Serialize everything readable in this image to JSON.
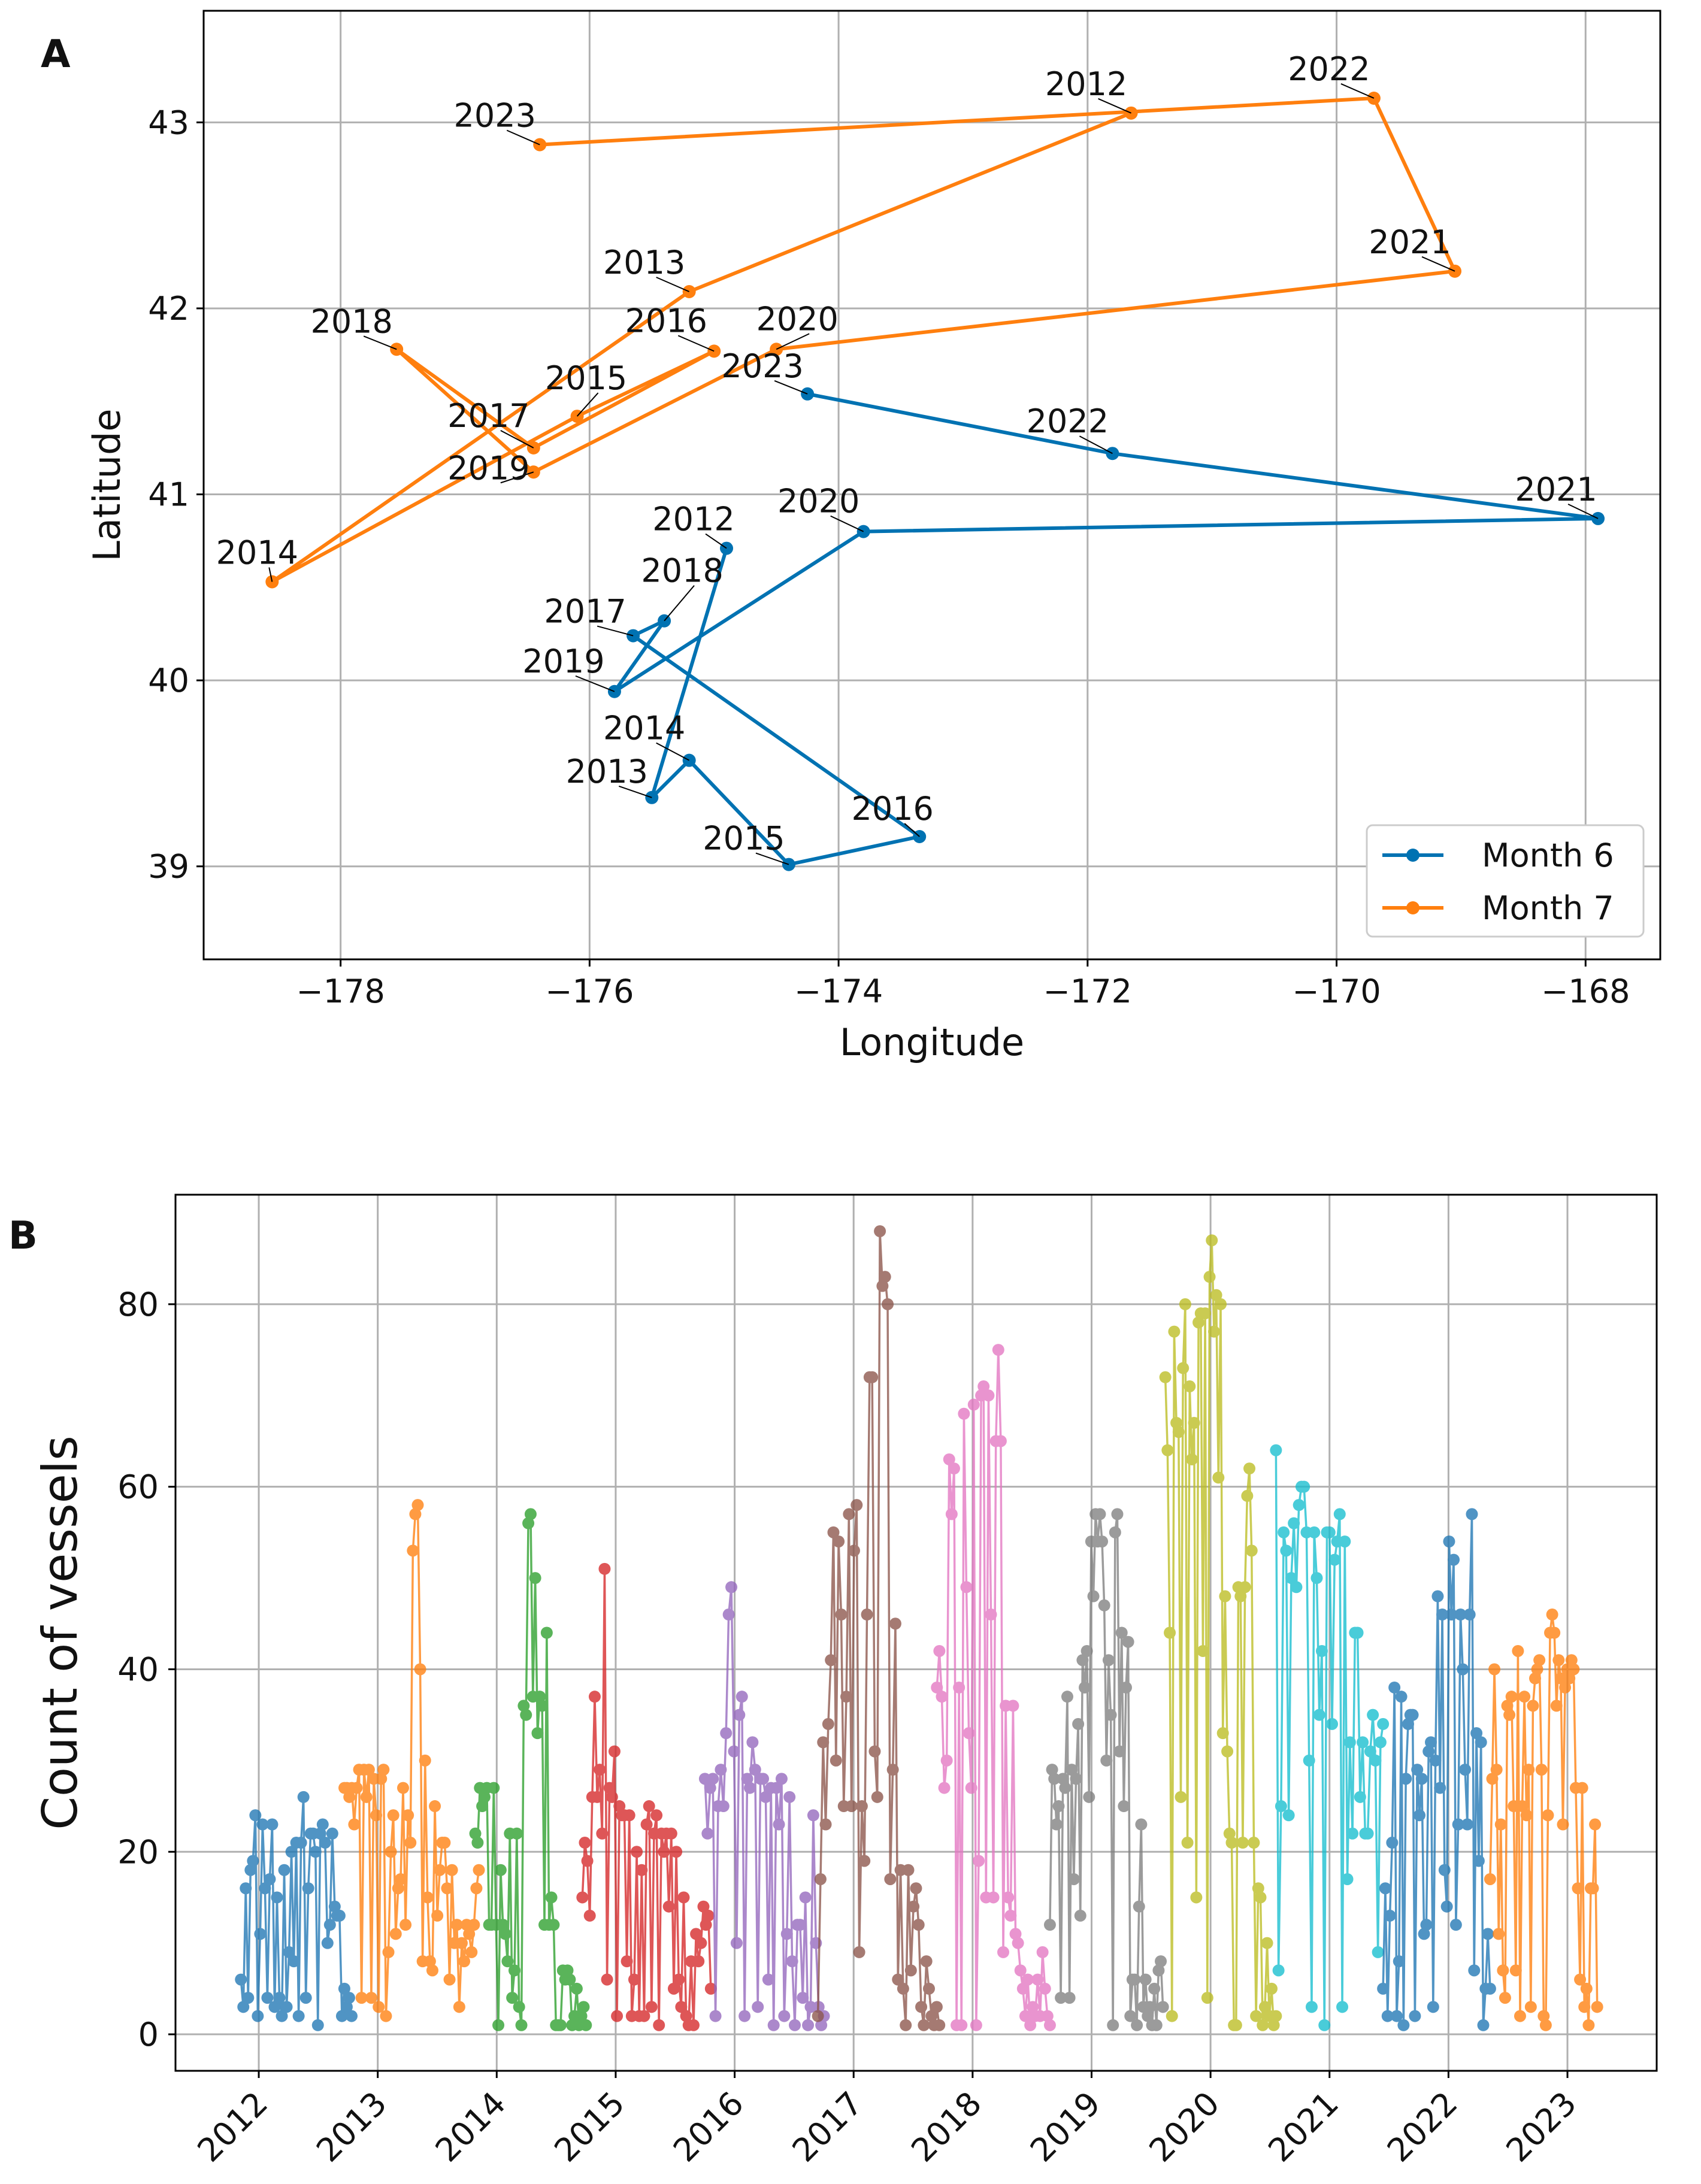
{
  "figure": {
    "panel_a_letter": "A",
    "panel_b_letter": "B"
  },
  "chart_data": [
    {
      "type": "line",
      "panel": "A",
      "title": "",
      "xlabel": "Longitude",
      "ylabel": "Latitude",
      "xlim": [
        -179.1,
        -167.4
      ],
      "ylim": [
        38.5,
        43.6
      ],
      "xticks": [
        -178,
        -176,
        -174,
        -172,
        -170,
        -168
      ],
      "xtick_labels": [
        "−178",
        "−176",
        "−174",
        "−172",
        "−170",
        "−168"
      ],
      "yticks": [
        39,
        40,
        41,
        42,
        43
      ],
      "ytick_labels": [
        "39",
        "40",
        "41",
        "42",
        "43"
      ],
      "grid": true,
      "legend_position": "bottom-right",
      "series": [
        {
          "name": "Month 6",
          "color": "#0072b2",
          "points": [
            {
              "label": "2012",
              "x": -174.9,
              "y": 40.71
            },
            {
              "label": "2013",
              "x": -175.5,
              "y": 39.37
            },
            {
              "label": "2014",
              "x": -175.2,
              "y": 39.57
            },
            {
              "label": "2015",
              "x": -174.4,
              "y": 39.01
            },
            {
              "label": "2016",
              "x": -173.35,
              "y": 39.16
            },
            {
              "label": "2017",
              "x": -175.65,
              "y": 40.24
            },
            {
              "label": "2018",
              "x": -175.4,
              "y": 40.32
            },
            {
              "label": "2019",
              "x": -175.8,
              "y": 39.94
            },
            {
              "label": "2020",
              "x": -173.8,
              "y": 40.8
            },
            {
              "label": "2021",
              "x": -167.9,
              "y": 40.87
            },
            {
              "label": "2022",
              "x": -171.8,
              "y": 41.22
            },
            {
              "label": "2023",
              "x": -174.25,
              "y": 41.54
            }
          ]
        },
        {
          "name": "Month 7",
          "color": "#ff7f0e",
          "points": [
            {
              "label": "2012",
              "x": -171.65,
              "y": 43.05
            },
            {
              "label": "2013",
              "x": -175.2,
              "y": 42.09
            },
            {
              "label": "2014",
              "x": -178.55,
              "y": 40.53
            },
            {
              "label": "2015",
              "x": -176.1,
              "y": 41.42
            },
            {
              "label": "2016",
              "x": -175.0,
              "y": 41.77
            },
            {
              "label": "2017",
              "x": -176.45,
              "y": 41.25
            },
            {
              "label": "2018",
              "x": -177.55,
              "y": 41.78
            },
            {
              "label": "2019",
              "x": -176.45,
              "y": 41.12
            },
            {
              "label": "2020",
              "x": -174.5,
              "y": 41.78
            },
            {
              "label": "2021",
              "x": -169.05,
              "y": 42.2
            },
            {
              "label": "2022",
              "x": -169.7,
              "y": 43.13
            },
            {
              "label": "2023",
              "x": -176.4,
              "y": 42.88
            }
          ]
        }
      ]
    },
    {
      "type": "line",
      "panel": "B",
      "title": "",
      "xlabel": "",
      "ylabel": "Count of vessels",
      "xlim": [
        2011.3,
        2023.75
      ],
      "ylim": [
        -4,
        92
      ],
      "xticks": [
        2012,
        2013,
        2014,
        2015,
        2016,
        2017,
        2018,
        2019,
        2020,
        2021,
        2022,
        2023
      ],
      "xtick_labels": [
        "2012",
        "2013",
        "2014",
        "2015",
        "2016",
        "2017",
        "2018",
        "2019",
        "2020",
        "2021",
        "2022",
        "2023"
      ],
      "yticks": [
        0,
        20,
        40,
        60,
        80
      ],
      "ytick_labels": [
        "0",
        "20",
        "40",
        "60",
        "80"
      ],
      "grid": true,
      "series": [
        {
          "name": "2012",
          "color": "#1f77b4",
          "x_start": 2011.85,
          "x_end": 2012.78,
          "values": [
            6,
            3,
            16,
            4,
            18,
            19,
            24,
            2,
            11,
            23,
            16,
            4,
            17,
            23,
            3,
            15,
            4,
            2,
            18,
            3,
            9,
            20,
            8,
            21,
            2,
            21,
            26,
            4,
            16,
            22,
            22,
            20,
            1,
            22,
            23,
            21,
            10,
            12,
            22,
            14,
            13,
            13,
            2,
            5,
            3,
            4,
            2
          ]
        },
        {
          "name": "2013",
          "color": "#ff7f0e",
          "x_start": 2012.72,
          "x_end": 2013.85,
          "values": [
            27,
            27,
            26,
            27,
            23,
            27,
            29,
            4,
            29,
            26,
            29,
            4,
            28,
            24,
            3,
            28,
            29,
            2,
            9,
            20,
            24,
            11,
            16,
            17,
            27,
            12,
            24,
            21,
            53,
            57,
            58,
            40,
            8,
            30,
            15,
            8,
            7,
            25,
            13,
            18,
            21,
            21,
            16,
            6,
            18,
            10,
            12,
            3,
            10,
            8,
            12,
            11,
            9,
            12,
            16,
            18
          ]
        },
        {
          "name": "2014",
          "color": "#2ca02c",
          "x_start": 2013.82,
          "x_end": 2014.75,
          "values": [
            22,
            21,
            27,
            25,
            26,
            27,
            12,
            12,
            27,
            12,
            1,
            18,
            12,
            11,
            8,
            22,
            4,
            7,
            22,
            3,
            1,
            36,
            35,
            56,
            57,
            37,
            50,
            33,
            37,
            36,
            12,
            44,
            12,
            15,
            12,
            1,
            1,
            1,
            7,
            6,
            7,
            6,
            1,
            2,
            5,
            1,
            2,
            3,
            1
          ]
        },
        {
          "name": "2015",
          "color": "#d62728",
          "x_start": 2014.72,
          "x_end": 2015.8,
          "values": [
            15,
            21,
            19,
            13,
            26,
            37,
            26,
            29,
            22,
            51,
            6,
            27,
            26,
            31,
            2,
            25,
            24,
            24,
            8,
            24,
            2,
            6,
            20,
            2,
            18,
            2,
            23,
            25,
            3,
            22,
            24,
            1,
            22,
            20,
            22,
            14,
            22,
            5,
            20,
            6,
            3,
            15,
            2,
            1,
            8,
            1,
            11,
            8,
            10,
            14,
            12,
            13,
            5
          ]
        },
        {
          "name": "2016",
          "color": "#9467bd",
          "x_start": 2015.75,
          "x_end": 2016.75,
          "values": [
            28,
            22,
            27,
            28,
            2,
            25,
            29,
            25,
            33,
            46,
            49,
            31,
            10,
            35,
            37,
            2,
            28,
            27,
            32,
            29,
            3,
            28,
            28,
            26,
            6,
            27,
            1,
            27,
            23,
            28,
            2,
            11,
            26,
            8,
            1,
            12,
            12,
            4,
            15,
            1,
            3,
            24,
            10,
            3,
            1,
            2
          ]
        },
        {
          "name": "2017",
          "color": "#8c564b",
          "x_start": 2016.7,
          "x_end": 2017.72,
          "values": [
            2,
            17,
            32,
            23,
            34,
            41,
            55,
            30,
            54,
            46,
            25,
            37,
            57,
            25,
            53,
            58,
            9,
            25,
            19,
            46,
            72,
            72,
            31,
            26,
            88,
            82,
            83,
            80,
            17,
            29,
            45,
            6,
            18,
            5,
            1,
            18,
            7,
            14,
            16,
            12,
            3,
            1,
            8,
            5,
            2,
            1,
            3,
            1
          ]
        },
        {
          "name": "2018",
          "color": "#e377c2",
          "x_start": 2017.7,
          "x_end": 2018.65,
          "values": [
            38,
            42,
            37,
            27,
            30,
            63,
            57,
            62,
            1,
            38,
            1,
            68,
            49,
            33,
            27,
            69,
            1,
            19,
            70,
            71,
            15,
            70,
            46,
            15,
            65,
            75,
            65,
            9,
            36,
            15,
            13,
            36,
            11,
            10,
            7,
            5,
            2,
            6,
            1,
            3,
            2,
            6,
            2,
            9,
            5,
            2,
            1
          ]
        },
        {
          "name": "2019",
          "color": "#7f7f7f",
          "x_start": 2018.65,
          "x_end": 2019.6,
          "values": [
            12,
            29,
            28,
            23,
            25,
            4,
            28,
            27,
            37,
            4,
            29,
            17,
            28,
            34,
            13,
            41,
            38,
            42,
            26,
            54,
            48,
            57,
            54,
            57,
            54,
            47,
            30,
            41,
            35,
            1,
            55,
            57,
            31,
            44,
            25,
            38,
            43,
            2,
            6,
            6,
            1,
            14,
            23,
            3,
            6,
            2,
            3,
            1,
            5,
            1,
            7,
            8,
            3
          ]
        },
        {
          "name": "2020",
          "color": "#bcbd22",
          "x_start": 2019.62,
          "x_end": 2020.55,
          "values": [
            72,
            64,
            44,
            2,
            77,
            67,
            66,
            26,
            73,
            80,
            21,
            71,
            63,
            67,
            15,
            78,
            79,
            42,
            79,
            4,
            83,
            87,
            77,
            81,
            61,
            80,
            33,
            48,
            31,
            22,
            21,
            1,
            1,
            49,
            48,
            21,
            49,
            59,
            62,
            53,
            21,
            2,
            16,
            15,
            1,
            3,
            10,
            2,
            5,
            1,
            2
          ]
        },
        {
          "name": "2021",
          "color": "#17becf",
          "x_start": 2020.55,
          "x_end": 2021.45,
          "values": [
            64,
            7,
            25,
            55,
            53,
            24,
            50,
            56,
            49,
            58,
            60,
            60,
            55,
            30,
            3,
            55,
            50,
            35,
            42,
            1,
            55,
            55,
            34,
            52,
            54,
            57,
            3,
            54,
            17,
            32,
            22,
            44,
            44,
            26,
            32,
            22,
            22,
            31,
            35,
            30,
            9,
            32,
            34
          ]
        },
        {
          "name": "2022",
          "color": "#1f77b4",
          "x_start": 2021.45,
          "x_end": 2022.35,
          "values": [
            5,
            16,
            2,
            13,
            21,
            38,
            2,
            8,
            37,
            1,
            28,
            34,
            35,
            35,
            2,
            29,
            24,
            28,
            11,
            12,
            31,
            32,
            3,
            30,
            48,
            27,
            46,
            18,
            14,
            54,
            46,
            52,
            12,
            23,
            46,
            40,
            29,
            23,
            46,
            57,
            7,
            33,
            19,
            32,
            1,
            5,
            11,
            5
          ]
        },
        {
          "name": "2023",
          "color": "#ff7f0e",
          "x_start": 2022.35,
          "x_end": 2023.25,
          "values": [
            17,
            28,
            40,
            29,
            11,
            23,
            7,
            4,
            36,
            35,
            37,
            25,
            7,
            42,
            2,
            25,
            37,
            24,
            29,
            3,
            36,
            39,
            40,
            41,
            29,
            2,
            1,
            24,
            44,
            46,
            44,
            36,
            41,
            39,
            23,
            38,
            40,
            39,
            41,
            40,
            27,
            16,
            6,
            27,
            3,
            5,
            1,
            16,
            16,
            23,
            3
          ]
        }
      ]
    }
  ]
}
